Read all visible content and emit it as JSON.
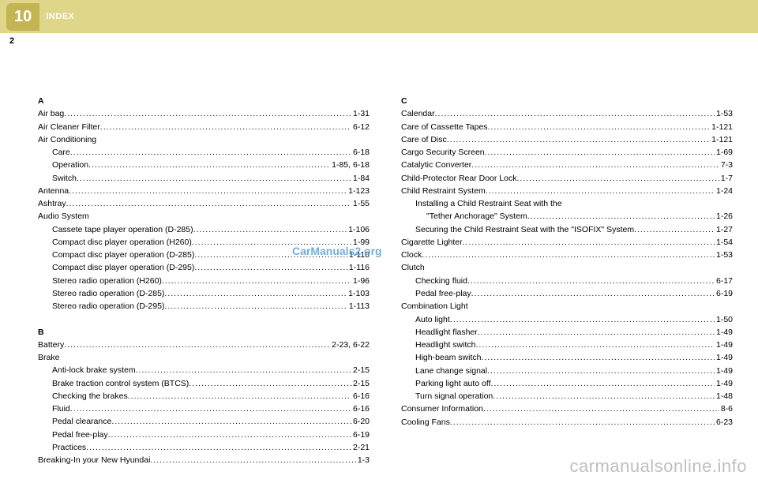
{
  "header": {
    "chapter": "10",
    "title": "INDEX",
    "pageNumber": "2"
  },
  "watermarks": {
    "center": "CarManuals2.org",
    "bottom": "carmanualsonline.info"
  },
  "leftColumn": [
    {
      "type": "head",
      "text": "A"
    },
    {
      "type": "entry",
      "label": "Air bag",
      "page": "1-31"
    },
    {
      "type": "entry",
      "label": "Air Cleaner Filter",
      "page": "6-12"
    },
    {
      "type": "plain",
      "label": "Air Conditioning"
    },
    {
      "type": "entry",
      "indent": 1,
      "label": "Care",
      "page": "6-18"
    },
    {
      "type": "entry",
      "indent": 1,
      "label": "Operation",
      "page": "1-85, 6-18"
    },
    {
      "type": "entry",
      "indent": 1,
      "label": "Switch",
      "page": "1-84"
    },
    {
      "type": "entry",
      "label": "Antenna",
      "page": "1-123"
    },
    {
      "type": "entry",
      "label": "Ashtray",
      "page": "1-55"
    },
    {
      "type": "plain",
      "label": "Audio System"
    },
    {
      "type": "entry",
      "indent": 1,
      "label": "Cassete tape player operation (D-285)",
      "page": "1-106"
    },
    {
      "type": "entry",
      "indent": 1,
      "label": "Compact disc player operation (H260)",
      "page": "1-99"
    },
    {
      "type": "entry",
      "indent": 1,
      "label": "Compact disc player operation (D-285)",
      "page": "1-110"
    },
    {
      "type": "entry",
      "indent": 1,
      "label": "Compact disc player operation (D-295)",
      "page": "1-116"
    },
    {
      "type": "entry",
      "indent": 1,
      "label": "Stereo radio operation (H260)",
      "page": "1-96"
    },
    {
      "type": "entry",
      "indent": 1,
      "label": "Stereo radio operation (D-285)",
      "page": "1-103"
    },
    {
      "type": "entry",
      "indent": 1,
      "label": "Stereo radio operation (D-295)",
      "page": "1-113"
    },
    {
      "type": "gap"
    },
    {
      "type": "head",
      "text": "B"
    },
    {
      "type": "entry",
      "label": "Battery",
      "page": "2-23, 6-22"
    },
    {
      "type": "plain",
      "label": "Brake"
    },
    {
      "type": "entry",
      "indent": 1,
      "label": "Anti-lock brake system",
      "page": "2-15"
    },
    {
      "type": "entry",
      "indent": 1,
      "label": "Brake traction control system (BTCS)",
      "page": "2-15"
    },
    {
      "type": "entry",
      "indent": 1,
      "label": "Checking the brakes",
      "page": "6-16"
    },
    {
      "type": "entry",
      "indent": 1,
      "label": "Fluid",
      "page": "6-16"
    },
    {
      "type": "entry",
      "indent": 1,
      "label": "Pedal clearance",
      "page": "6-20"
    },
    {
      "type": "entry",
      "indent": 1,
      "label": "Pedal free-play",
      "page": "6-19"
    },
    {
      "type": "entry",
      "indent": 1,
      "label": "Practices",
      "page": "2-21"
    },
    {
      "type": "entry",
      "label": "Breaking-In your New Hyundai",
      "page": "1-3"
    }
  ],
  "rightColumn": [
    {
      "type": "head",
      "text": "C"
    },
    {
      "type": "entry",
      "label": "Calendar",
      "page": "1-53"
    },
    {
      "type": "entry",
      "label": "Care of Cassette Tapes",
      "page": "1-121"
    },
    {
      "type": "entry",
      "label": "Care of Disc",
      "page": "1-121"
    },
    {
      "type": "entry",
      "label": "Cargo Security Screen",
      "page": "1-69"
    },
    {
      "type": "entry",
      "label": "Catalytic Converter",
      "page": "7-3"
    },
    {
      "type": "entry",
      "label": "Child-Protector Rear Door Lock",
      "page": "1-7"
    },
    {
      "type": "entry",
      "label": "Child Restraint System",
      "page": "1-24"
    },
    {
      "type": "plain",
      "indent": 1,
      "label": "Installing a Child Restraint Seat with the"
    },
    {
      "type": "entry",
      "indent": 2,
      "label": "\"Tether Anchorage\" System",
      "page": "1-26"
    },
    {
      "type": "entry",
      "indent": 1,
      "label": "Securing the Child Restraint Seat with the \"ISOFIX\" System",
      "page": "1-27"
    },
    {
      "type": "entry",
      "label": "Cigarette Lighter",
      "page": "1-54"
    },
    {
      "type": "entry",
      "label": "Clock",
      "page": "1-53"
    },
    {
      "type": "plain",
      "label": "Clutch"
    },
    {
      "type": "entry",
      "indent": 1,
      "label": "Checking fluid",
      "page": "6-17"
    },
    {
      "type": "entry",
      "indent": 1,
      "label": "Pedal free-play",
      "page": "6-19"
    },
    {
      "type": "plain",
      "label": "Combination Light"
    },
    {
      "type": "entry",
      "indent": 1,
      "label": "Auto light",
      "page": "1-50"
    },
    {
      "type": "entry",
      "indent": 1,
      "label": "Headlight flasher",
      "page": "1-49"
    },
    {
      "type": "entry",
      "indent": 1,
      "label": "Headlight switch",
      "page": "1-49"
    },
    {
      "type": "entry",
      "indent": 1,
      "label": "High-beam switch",
      "page": "1-49"
    },
    {
      "type": "entry",
      "indent": 1,
      "label": "Lane change signal",
      "page": "1-49"
    },
    {
      "type": "entry",
      "indent": 1,
      "label": "Parking light auto off",
      "page": "1-49"
    },
    {
      "type": "entry",
      "indent": 1,
      "label": "Turn signal operation",
      "page": "1-48"
    },
    {
      "type": "entry",
      "label": "Consumer Information",
      "page": "8-6"
    },
    {
      "type": "entry",
      "label": "Cooling Fans",
      "page": "6-23"
    }
  ]
}
